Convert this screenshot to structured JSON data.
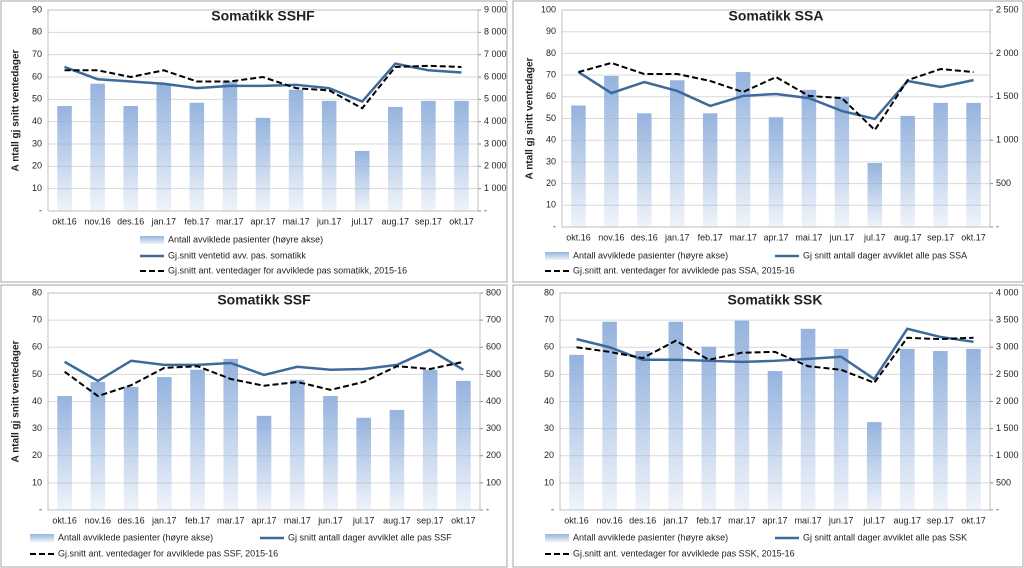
{
  "chart_data": [
    {
      "type": "bar-line",
      "title": "Somatikk SSHF",
      "y_label": "A ntall gj snitt ventedager",
      "categories": [
        "okt.16",
        "nov.16",
        "des.16",
        "jan.17",
        "feb.17",
        "mar.17",
        "apr.17",
        "mai.17",
        "jun.17",
        "jul.17",
        "aug.17",
        "sep.17",
        "okt.17"
      ],
      "ylim": [
        0,
        90
      ],
      "yticks": [
        {
          "value": 0,
          "label": "-"
        },
        10,
        20,
        30,
        40,
        50,
        60,
        70,
        80,
        90
      ],
      "y2lim": [
        0,
        9000
      ],
      "y2ticks": [
        {
          "value": 0,
          "label": "-"
        },
        {
          "value": 1000,
          "label": "1 000"
        },
        {
          "value": 2000,
          "label": "2 000"
        },
        {
          "value": 3000,
          "label": "3 000"
        },
        {
          "value": 4000,
          "label": "4 000"
        },
        {
          "value": 5000,
          "label": "5 000"
        },
        {
          "value": 6000,
          "label": "6 000"
        },
        {
          "value": 7000,
          "label": "7 000"
        },
        {
          "value": 8000,
          "label": "8 000"
        },
        {
          "value": 9000,
          "label": "9 000"
        }
      ],
      "grid": true,
      "series": [
        {
          "name": "Antall avviklede pasienter (høyre akse)",
          "type": "bar",
          "axis": "y2",
          "color": "#95b3de",
          "values": [
            4700,
            5700,
            4700,
            5700,
            4850,
            5800,
            4170,
            5430,
            4930,
            2690,
            4660,
            4930,
            4930
          ]
        },
        {
          "name": "Gj.snitt ventetid avv. pas. somatikk",
          "type": "line",
          "style": "solid",
          "color": "#3d6a99",
          "values": [
            64.5,
            59,
            58,
            57,
            55,
            56,
            56,
            56.5,
            55,
            49,
            66,
            63,
            62
          ]
        },
        {
          "name": "Gj.snitt ant. ventedager for avviklede pas somatikk, 2015-16",
          "type": "line",
          "style": "dashed",
          "color": "#000000",
          "values": [
            63,
            63,
            60,
            63,
            58,
            58,
            60,
            55,
            54,
            46,
            64.5,
            65,
            64.5
          ]
        }
      ]
    },
    {
      "type": "bar-line",
      "title": "Somatikk SSA",
      "y_label": "A ntall gj snitt ventedager",
      "categories": [
        "okt.16",
        "nov.16",
        "des.16",
        "jan.17",
        "feb.17",
        "mar.17",
        "apr.17",
        "mai.17",
        "jun.17",
        "jul.17",
        "aug.17",
        "sep.17",
        "okt.17"
      ],
      "ylim": [
        0,
        100
      ],
      "yticks": [
        {
          "value": 0,
          "label": "-"
        },
        10,
        20,
        30,
        40,
        50,
        60,
        70,
        80,
        90,
        100
      ],
      "y2lim": [
        0,
        2500
      ],
      "y2ticks": [
        {
          "value": 0,
          "label": "-"
        },
        500,
        {
          "value": 1000,
          "label": "1 000"
        },
        {
          "value": 1500,
          "label": "1 500"
        },
        {
          "value": 2000,
          "label": "2 000"
        },
        {
          "value": 2500,
          "label": "2 500"
        }
      ],
      "grid": true,
      "series": [
        {
          "name": "Antall avviklede pasienter (høyre akse)",
          "type": "bar",
          "axis": "y2",
          "color": "#95b3de",
          "values": [
            1400,
            1740,
            1310,
            1690,
            1310,
            1785,
            1265,
            1580,
            1500,
            737,
            1280,
            1430,
            1430
          ]
        },
        {
          "name": "Gj snitt antall dager avviklet alle pas SSA",
          "type": "line",
          "style": "solid",
          "color": "#3d6a99",
          "values": [
            71.4,
            61.7,
            66.8,
            62.7,
            55.8,
            60.4,
            61.3,
            59.4,
            53.5,
            49.8,
            67.3,
            64.5,
            67.7
          ]
        },
        {
          "name": "Gj.snitt ant. ventedager for avviklede pas SSA, 2015-16",
          "type": "line",
          "style": "dashed",
          "color": "#000000",
          "values": [
            71.4,
            75.6,
            70.5,
            70.5,
            67.3,
            62.2,
            69.1,
            60.4,
            59.4,
            44.7,
            67.7,
            72.8,
            71.4
          ]
        }
      ]
    },
    {
      "type": "bar-line",
      "title": "Somatikk SSF",
      "y_label": "A ntall gj snitt ventedager",
      "categories": [
        "okt.16",
        "nov.16",
        "des.16",
        "jan.17",
        "feb.17",
        "mar.17",
        "apr.17",
        "mai.17",
        "jun.17",
        "jul.17",
        "aug.17",
        "sep.17",
        "okt.17"
      ],
      "ylim": [
        0,
        80
      ],
      "yticks": [
        {
          "value": 0,
          "label": "-"
        },
        10,
        20,
        30,
        40,
        50,
        60,
        70,
        80
      ],
      "y2lim": [
        0,
        800
      ],
      "y2ticks": [
        {
          "value": 0,
          "label": "-"
        },
        100,
        200,
        300,
        400,
        500,
        600,
        700,
        800
      ],
      "grid": true,
      "series": [
        {
          "name": "Antall avviklede pasienter (høyre akse)",
          "type": "bar",
          "axis": "y2",
          "color": "#95b3de",
          "values": [
            420,
            472,
            454,
            490,
            517,
            557,
            347,
            480,
            420,
            340,
            369,
            517,
            476
          ]
        },
        {
          "name": "Gj snitt antall dager avviklet alle pas SSF",
          "type": "line",
          "style": "solid",
          "color": "#3d6a99",
          "values": [
            54.6,
            47.6,
            55,
            53.5,
            53.5,
            54.2,
            49.8,
            52.8,
            51.7,
            52,
            53.5,
            59,
            51.7
          ]
        },
        {
          "name": "Gj.snitt ant. ventedager for avviklede pas SSF, 2015-16",
          "type": "line",
          "style": "dashed",
          "color": "#000000",
          "values": [
            51,
            42,
            46,
            52.4,
            53,
            48.3,
            45.8,
            47.2,
            44.3,
            47.2,
            53,
            52,
            54.6
          ]
        }
      ]
    },
    {
      "type": "bar-line",
      "title": "Somatikk SSK",
      "categories": [
        "okt.16",
        "nov.16",
        "des.16",
        "jan.17",
        "feb.17",
        "mar.17",
        "apr.17",
        "mai.17",
        "jun.17",
        "jul.17",
        "aug.17",
        "sep.17",
        "okt.17"
      ],
      "ylim": [
        0,
        80
      ],
      "yticks": [
        {
          "value": 0,
          "label": "-"
        },
        10,
        20,
        30,
        40,
        50,
        60,
        70,
        80
      ],
      "y2lim": [
        0,
        4000
      ],
      "y2ticks": [
        {
          "value": 0,
          "label": "-"
        },
        500,
        {
          "value": 1000,
          "label": "1 000"
        },
        {
          "value": 1500,
          "label": "1 500"
        },
        {
          "value": 2000,
          "label": "2 000"
        },
        {
          "value": 2500,
          "label": "2 500"
        },
        {
          "value": 3000,
          "label": "3 000"
        },
        {
          "value": 3500,
          "label": "3 500"
        },
        {
          "value": 4000,
          "label": "4 000"
        }
      ],
      "grid": true,
      "series": [
        {
          "name": "Antall avviklede pasienter (høyre akse)",
          "type": "bar",
          "axis": "y2",
          "color": "#95b3de",
          "values": [
            2860,
            3470,
            2930,
            3470,
            3010,
            3490,
            2560,
            3340,
            2970,
            1620,
            2970,
            2930,
            2970
          ]
        },
        {
          "name": "Gj snitt antall dager avviklet alle pas SSK",
          "type": "line",
          "style": "solid",
          "color": "#3d6a99",
          "values": [
            63,
            60,
            55.4,
            55.4,
            55,
            54.6,
            55,
            55.7,
            56.5,
            48.3,
            66.8,
            63.8,
            62
          ]
        },
        {
          "name": "Gj.snitt ant. ventedager for avviklede pas SSK, 2015-16",
          "type": "line",
          "style": "dashed",
          "color": "#000000",
          "values": [
            60,
            58.3,
            56,
            62.4,
            55.4,
            58,
            58.3,
            53,
            51.7,
            46.9,
            63.5,
            63,
            63.5
          ]
        }
      ]
    }
  ]
}
